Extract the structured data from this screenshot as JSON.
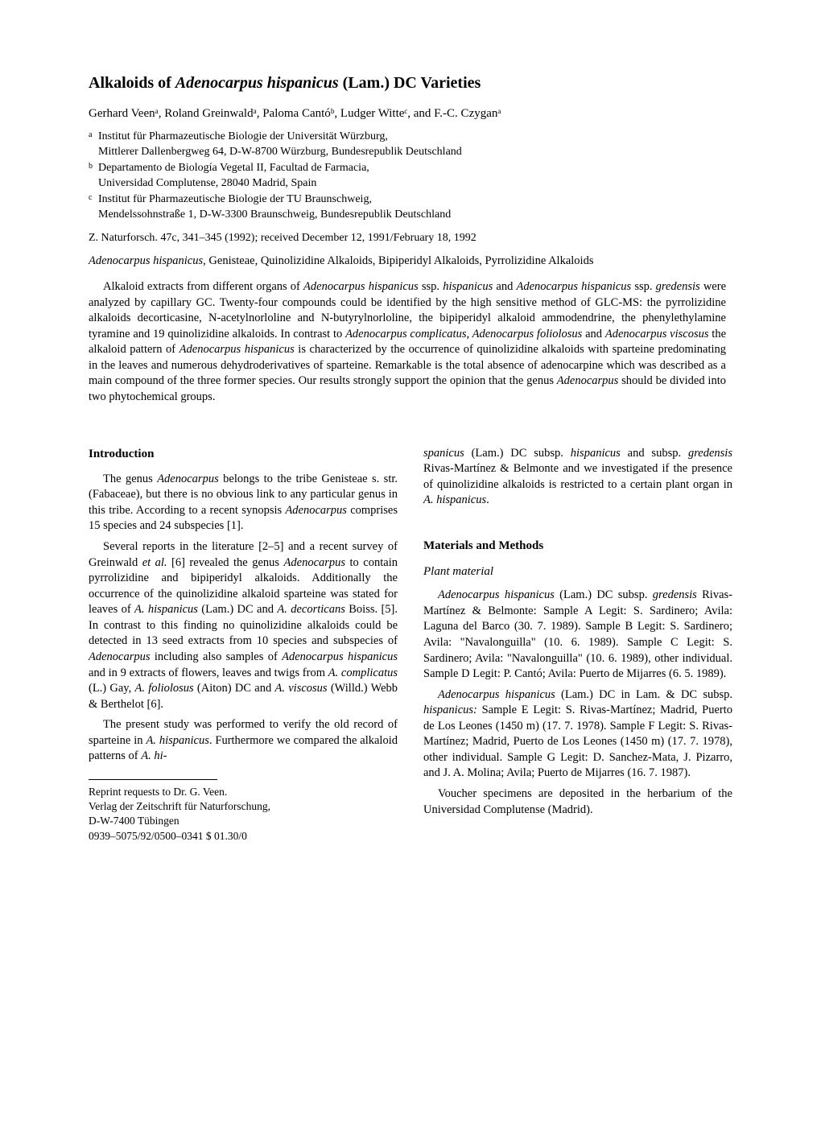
{
  "title_pre": "Alkaloids of ",
  "title_ital": "Adenocarpus hispanicus",
  "title_post": " (Lam.) DC Varieties",
  "authors": "Gerhard Veenᵃ, Roland Greinwaldᵃ, Paloma Cantóᵇ, Ludger Witteᶜ, and F.-C. Czyganᵃ",
  "affiliations": [
    {
      "marker": "a",
      "text": "Institut für Pharmazeutische Biologie der Universität Würzburg,\nMittlerer Dallenbergweg 64, D-W-8700 Würzburg, Bundesrepublik Deutschland"
    },
    {
      "marker": "b",
      "text": "Departamento de Biología Vegetal II, Facultad de Farmacia,\nUniversidad Complutense, 28040 Madrid, Spain"
    },
    {
      "marker": "c",
      "text": "Institut für Pharmazeutische Biologie der TU Braunschweig,\nMendelssohnstraße 1, D-W-3300 Braunschweig, Bundesrepublik Deutschland"
    }
  ],
  "citation": "Z. Naturforsch. 47c, 341–345 (1992); received December 12, 1991/February 18, 1992",
  "keywords_ital": "Adenocarpus hispanicus,",
  "keywords_rest": " Genisteae, Quinolizidine Alkaloids, Bipiperidyl Alkaloids, Pyrrolizidine Alkaloids",
  "abstract_parts": [
    {
      "t": "plain",
      "v": "Alkaloid extracts from different organs of "
    },
    {
      "t": "ital",
      "v": "Adenocarpus hispanicus"
    },
    {
      "t": "plain",
      "v": " ssp. "
    },
    {
      "t": "ital",
      "v": "hispanicus"
    },
    {
      "t": "plain",
      "v": " and "
    },
    {
      "t": "ital",
      "v": "Adenocarpus hispanicus"
    },
    {
      "t": "plain",
      "v": " ssp. "
    },
    {
      "t": "ital",
      "v": "gredensis"
    },
    {
      "t": "plain",
      "v": " were analyzed by capillary GC. Twenty-four compounds could be identified by the high sensitive method of GLC-MS: the pyrrolizidine alkaloids decorticasine, N-acetylnorloline and N-butyrylnorloline, the bipiperidyl alkaloid ammodendrine, the phenylethylamine tyramine and 19 quinolizidine alkaloids. In contrast to "
    },
    {
      "t": "ital",
      "v": "Adenocarpus complicatus, Adenocarpus foliolosus"
    },
    {
      "t": "plain",
      "v": " and "
    },
    {
      "t": "ital",
      "v": "Adenocarpus viscosus"
    },
    {
      "t": "plain",
      "v": " the alkaloid pattern of "
    },
    {
      "t": "ital",
      "v": "Adenocarpus hispanicus"
    },
    {
      "t": "plain",
      "v": " is characterized by the occurrence of quinolizidine alkaloids with sparteine predominating in the leaves and numerous dehydroderivatives of sparteine. Remarkable is the total absence of adenocarpine which was described as a main compound of the three former species. Our results strongly support the opinion that the genus "
    },
    {
      "t": "ital",
      "v": "Adenocarpus"
    },
    {
      "t": "plain",
      "v": " should be divided into two phytochemical groups."
    }
  ],
  "intro_heading": "Introduction",
  "intro_p1": [
    {
      "t": "plain",
      "v": "The genus "
    },
    {
      "t": "ital",
      "v": "Adenocarpus"
    },
    {
      "t": "plain",
      "v": " belongs to the tribe Genisteae s. str. (Fabaceae), but there is no obvious link to any particular genus in this tribe. According to a recent synopsis "
    },
    {
      "t": "ital",
      "v": "Adenocarpus"
    },
    {
      "t": "plain",
      "v": " comprises 15 species and 24 subspecies [1]."
    }
  ],
  "intro_p2": [
    {
      "t": "plain",
      "v": "Several reports in the literature [2–5] and a recent survey of Greinwald "
    },
    {
      "t": "ital",
      "v": "et al."
    },
    {
      "t": "plain",
      "v": " [6] revealed the genus "
    },
    {
      "t": "ital",
      "v": "Adenocarpus"
    },
    {
      "t": "plain",
      "v": " to contain pyrrolizidine and bipiperidyl alkaloids. Additionally the occurrence of the quinolizidine alkaloid sparteine was stated for leaves of "
    },
    {
      "t": "ital",
      "v": "A. hispanicus"
    },
    {
      "t": "plain",
      "v": " (Lam.) DC and "
    },
    {
      "t": "ital",
      "v": "A. decorticans"
    },
    {
      "t": "plain",
      "v": " Boiss. [5]. In contrast to this finding no quinolizidine alkaloids could be detected in 13 seed extracts from 10 species and subspecies of "
    },
    {
      "t": "ital",
      "v": "Adenocarpus"
    },
    {
      "t": "plain",
      "v": " including also samples of "
    },
    {
      "t": "ital",
      "v": "Adenocarpus hispanicus"
    },
    {
      "t": "plain",
      "v": " and in 9 extracts of flowers, leaves and twigs from "
    },
    {
      "t": "ital",
      "v": "A. complicatus"
    },
    {
      "t": "plain",
      "v": " (L.) Gay, "
    },
    {
      "t": "ital",
      "v": "A. foliolosus"
    },
    {
      "t": "plain",
      "v": " (Aiton) DC and "
    },
    {
      "t": "ital",
      "v": "A. viscosus"
    },
    {
      "t": "plain",
      "v": " (Willd.) Webb & Berthelot [6]."
    }
  ],
  "intro_p3": [
    {
      "t": "plain",
      "v": "The present study was performed to verify the old record of sparteine in "
    },
    {
      "t": "ital",
      "v": "A. hispanicus"
    },
    {
      "t": "plain",
      "v": ". Furthermore we compared the alkaloid patterns of "
    },
    {
      "t": "ital",
      "v": "A. hi-"
    }
  ],
  "right_p1": [
    {
      "t": "ital",
      "v": "spanicus"
    },
    {
      "t": "plain",
      "v": " (Lam.) DC subsp. "
    },
    {
      "t": "ital",
      "v": "hispanicus"
    },
    {
      "t": "plain",
      "v": " and subsp. "
    },
    {
      "t": "ital",
      "v": "gredensis"
    },
    {
      "t": "plain",
      "v": " Rivas-Martínez & Belmonte and we investigated if the presence of quinolizidine alkaloids is restricted to a certain plant organ in "
    },
    {
      "t": "ital",
      "v": "A. hispanicus"
    },
    {
      "t": "plain",
      "v": "."
    }
  ],
  "mm_heading": "Materials and Methods",
  "plant_heading": "Plant material",
  "mm_p1": [
    {
      "t": "ital",
      "v": "Adenocarpus hispanicus"
    },
    {
      "t": "plain",
      "v": " (Lam.) DC subsp. "
    },
    {
      "t": "ital",
      "v": "gredensis"
    },
    {
      "t": "plain",
      "v": " Rivas-Martínez & Belmonte: Sample A Legit: S. Sardinero; Avila: Laguna del Barco (30. 7. 1989). Sample B Legit: S. Sardinero; Avila: \"Navalonguilla\" (10. 6. 1989). Sample C Legit: S. Sardinero; Avila: \"Navalonguilla\" (10. 6. 1989), other individual. Sample D Legit: P. Cantó; Avila: Puerto de Mijarres (6. 5. 1989)."
    }
  ],
  "mm_p2": [
    {
      "t": "ital",
      "v": "Adenocarpus hispanicus"
    },
    {
      "t": "plain",
      "v": " (Lam.) DC in Lam. & DC subsp. "
    },
    {
      "t": "ital",
      "v": "hispanicus:"
    },
    {
      "t": "plain",
      "v": " Sample E Legit: S. Rivas-Martínez; Madrid, Puerto de Los Leones (1450 m) (17. 7. 1978). Sample F Legit: S. Rivas-Martínez; Madrid, Puerto de Los Leones (1450 m) (17. 7. 1978), other individual. Sample G Legit: D. Sanchez-Mata, J. Pizarro, and J. A. Molina; Avila; Puerto de Mijarres (16. 7. 1987)."
    }
  ],
  "mm_p3": [
    {
      "t": "plain",
      "v": "Voucher specimens are deposited in the herbarium of the Universidad Complutense (Madrid)."
    }
  ],
  "footer": {
    "l1": "Reprint requests to Dr. G. Veen.",
    "l2": "Verlag der Zeitschrift für Naturforschung,",
    "l3": "D-W-7400 Tübingen",
    "l4": "0939–5075/92/0500–0341   $ 01.30/0"
  }
}
